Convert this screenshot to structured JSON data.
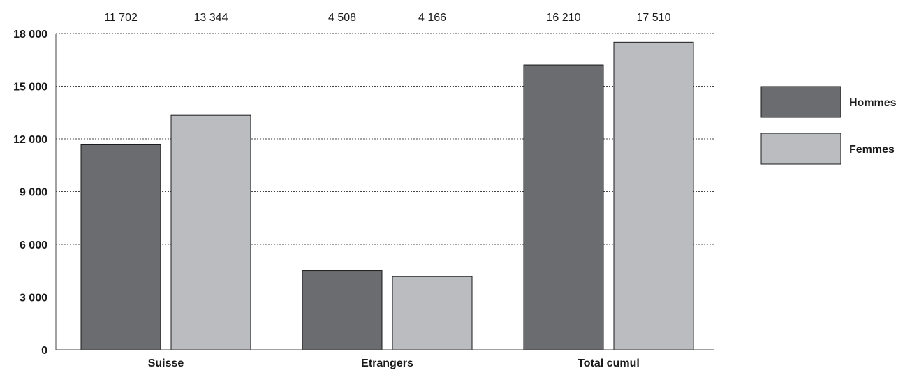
{
  "chart_data": {
    "type": "bar",
    "categories": [
      "Suisse",
      "Etrangers",
      "Total cumul"
    ],
    "series": [
      {
        "name": "Hommes",
        "color": "#6b6c70",
        "values": [
          11702,
          4508,
          16210
        ],
        "labels": [
          "11 702",
          "4 508",
          "16 210"
        ]
      },
      {
        "name": "Femmes",
        "color": "#bbbcc0",
        "values": [
          13344,
          4166,
          17510
        ],
        "labels": [
          "13 344",
          "4 166",
          "17 510"
        ]
      }
    ],
    "ylim": [
      0,
      18000
    ],
    "yticks": [
      0,
      3000,
      6000,
      9000,
      12000,
      15000,
      18000
    ],
    "ytick_labels": [
      "0",
      "3 000",
      "6 000",
      "9 000",
      "12 000",
      "15 000",
      "18 000"
    ],
    "grid": true,
    "legend_position": "right"
  }
}
